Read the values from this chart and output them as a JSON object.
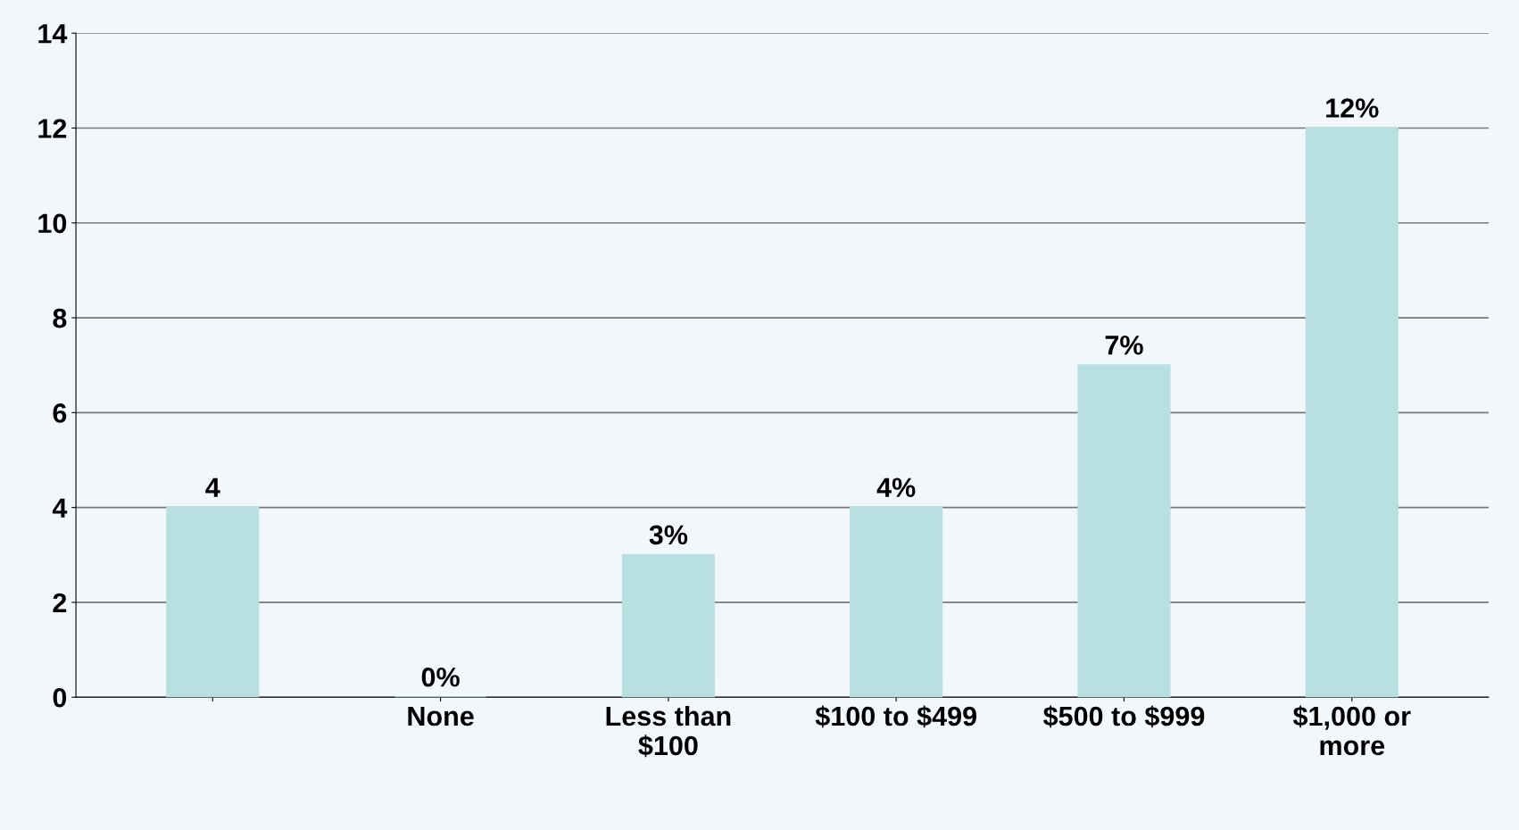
{
  "chart_data": {
    "type": "bar",
    "categories": [
      null,
      "None",
      "Less than\n$100",
      "$100 to $499",
      "$500 to $999",
      "$1,000 or\nmore"
    ],
    "values": [
      4,
      0,
      3,
      4,
      7,
      12
    ],
    "value_labels": [
      "4",
      "0%",
      "3%",
      "4%",
      "7%",
      "12%"
    ],
    "color": "#b9e0e1",
    "ylim": [
      0,
      14
    ],
    "yticks": [
      0,
      2,
      4,
      6,
      8,
      10,
      12,
      14
    ],
    "grid": "y"
  }
}
